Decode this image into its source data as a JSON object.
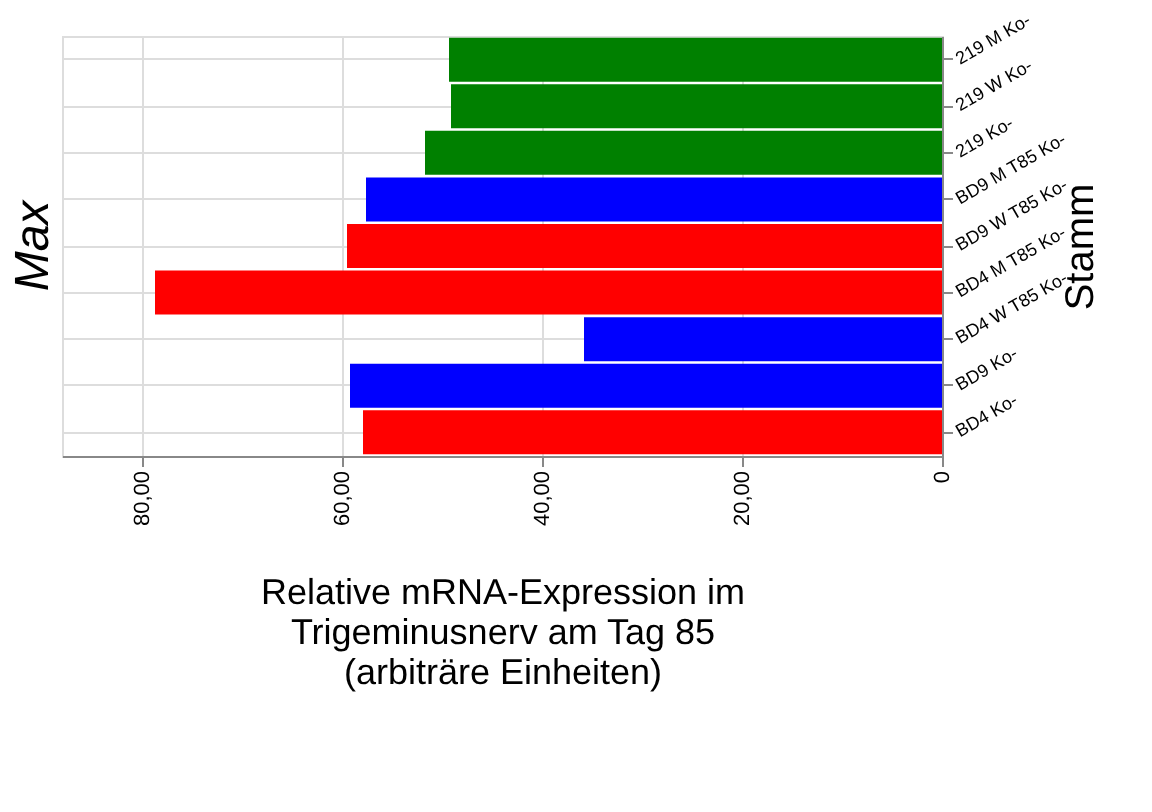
{
  "chart_data": {
    "type": "bar",
    "orientation": "horizontal",
    "categories": [
      "219 M Ko-",
      "219 W Ko-",
      "219 Ko-",
      "BD9 M T85 Ko-",
      "BD9 W T85 Ko-",
      "BD4 M T85 Ko-",
      "BD4 W T85 Ko-",
      "BD9 Ko-",
      "BD4 Ko-"
    ],
    "values": [
      49.3,
      49.1,
      51.7,
      57.6,
      59.5,
      78.7,
      35.8,
      59.2,
      57.9
    ],
    "colors": [
      "#008000",
      "#008000",
      "#008000",
      "#0000ff",
      "#ff0000",
      "#ff0000",
      "#0000ff",
      "#0000ff",
      "#ff0000"
    ],
    "xlim": [
      88,
      0
    ],
    "xticks": [
      {
        "value": 80,
        "label": "80,00"
      },
      {
        "value": 60,
        "label": "60,00"
      },
      {
        "value": 40,
        "label": "40,00"
      },
      {
        "value": 20,
        "label": "20,00"
      },
      0
    ],
    "xlabel": "Relative mRNA-Expression im\nTrigeminusnerv am Tag 85\n(arbiträre Einheiten)",
    "ylabel": "Stamm",
    "annotations": [
      "Max"
    ],
    "grid": true
  }
}
